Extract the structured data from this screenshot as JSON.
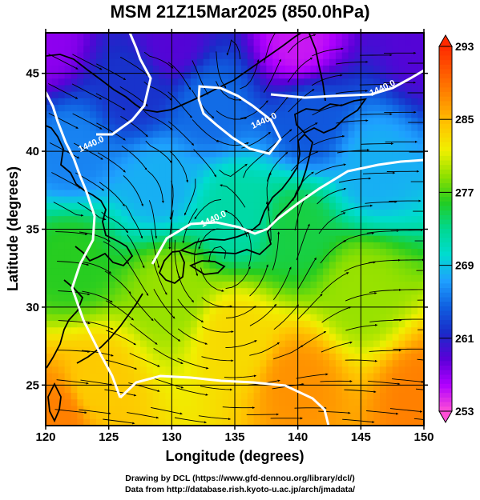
{
  "title": "MSM 21Z15Mar2025 (850.0hPa)",
  "credits": {
    "line1": "Drawing by DCL (https://www.gfd-dennou.org/library/dcl/)",
    "line2": "Data from http://database.rish.kyoto-u.ac.jp/arch/jmadata/"
  },
  "chart_data": {
    "type": "heatmap",
    "title": "MSM 21Z15Mar2025 (850.0hPa)",
    "xlabel": "Longitude (degrees)",
    "ylabel": "Latitude  (degrees)",
    "xlim": [
      120,
      150
    ],
    "ylim": [
      22.4,
      47.6
    ],
    "x_ticks": [
      120,
      125,
      130,
      135,
      140,
      145,
      150
    ],
    "y_ticks": [
      25,
      30,
      35,
      40,
      45
    ],
    "grid": true,
    "colorbar": {
      "range": [
        253,
        293
      ],
      "tick_labels": [
        253,
        261,
        269,
        277,
        285,
        293
      ],
      "colors": [
        "#ff4fd6",
        "#b000ff",
        "#5a00d8",
        "#1a2bc8",
        "#0f5fe0",
        "#1fa0ff",
        "#00dcd0",
        "#00d890",
        "#22cc22",
        "#8ee000",
        "#f0f000",
        "#ffc400",
        "#ff8c00",
        "#ff5a00",
        "#ff2a00"
      ]
    },
    "temperature_field": [
      {
        "lon": 120,
        "lat": 47,
        "value": 257
      },
      {
        "lon": 130,
        "lat": 47,
        "value": 259
      },
      {
        "lon": 140,
        "lat": 47,
        "value": 255
      },
      {
        "lon": 150,
        "lat": 47,
        "value": 259
      },
      {
        "lon": 127,
        "lat": 44,
        "value": 262
      },
      {
        "lon": 133,
        "lat": 43,
        "value": 265
      },
      {
        "lon": 141,
        "lat": 42,
        "value": 264
      },
      {
        "lon": 122,
        "lat": 40,
        "value": 266
      },
      {
        "lon": 129,
        "lat": 38,
        "value": 268
      },
      {
        "lon": 146,
        "lat": 39,
        "value": 268
      },
      {
        "lon": 135,
        "lat": 36,
        "value": 272
      },
      {
        "lon": 140,
        "lat": 35,
        "value": 275
      },
      {
        "lon": 122,
        "lat": 33,
        "value": 276
      },
      {
        "lon": 130,
        "lat": 31,
        "value": 279
      },
      {
        "lon": 145,
        "lat": 31,
        "value": 279
      },
      {
        "lon": 135,
        "lat": 28,
        "value": 283
      },
      {
        "lon": 124,
        "lat": 25,
        "value": 284
      },
      {
        "lon": 140,
        "lat": 25,
        "value": 287
      },
      {
        "lon": 150,
        "lat": 24,
        "value": 288
      },
      {
        "lon": 121,
        "lat": 23,
        "value": 288
      }
    ],
    "contour_labels": [
      {
        "text": "1440.0",
        "lon": 123.7,
        "lat": 40.3
      },
      {
        "text": "1440.0",
        "lon": 137.4,
        "lat": 41.8
      },
      {
        "text": "1440.0",
        "lon": 146.8,
        "lat": 43.9
      },
      {
        "text": "1440.0",
        "lon": 133.4,
        "lat": 35.5
      }
    ],
    "vector_field": "streamlines (850 hPa wind)"
  }
}
